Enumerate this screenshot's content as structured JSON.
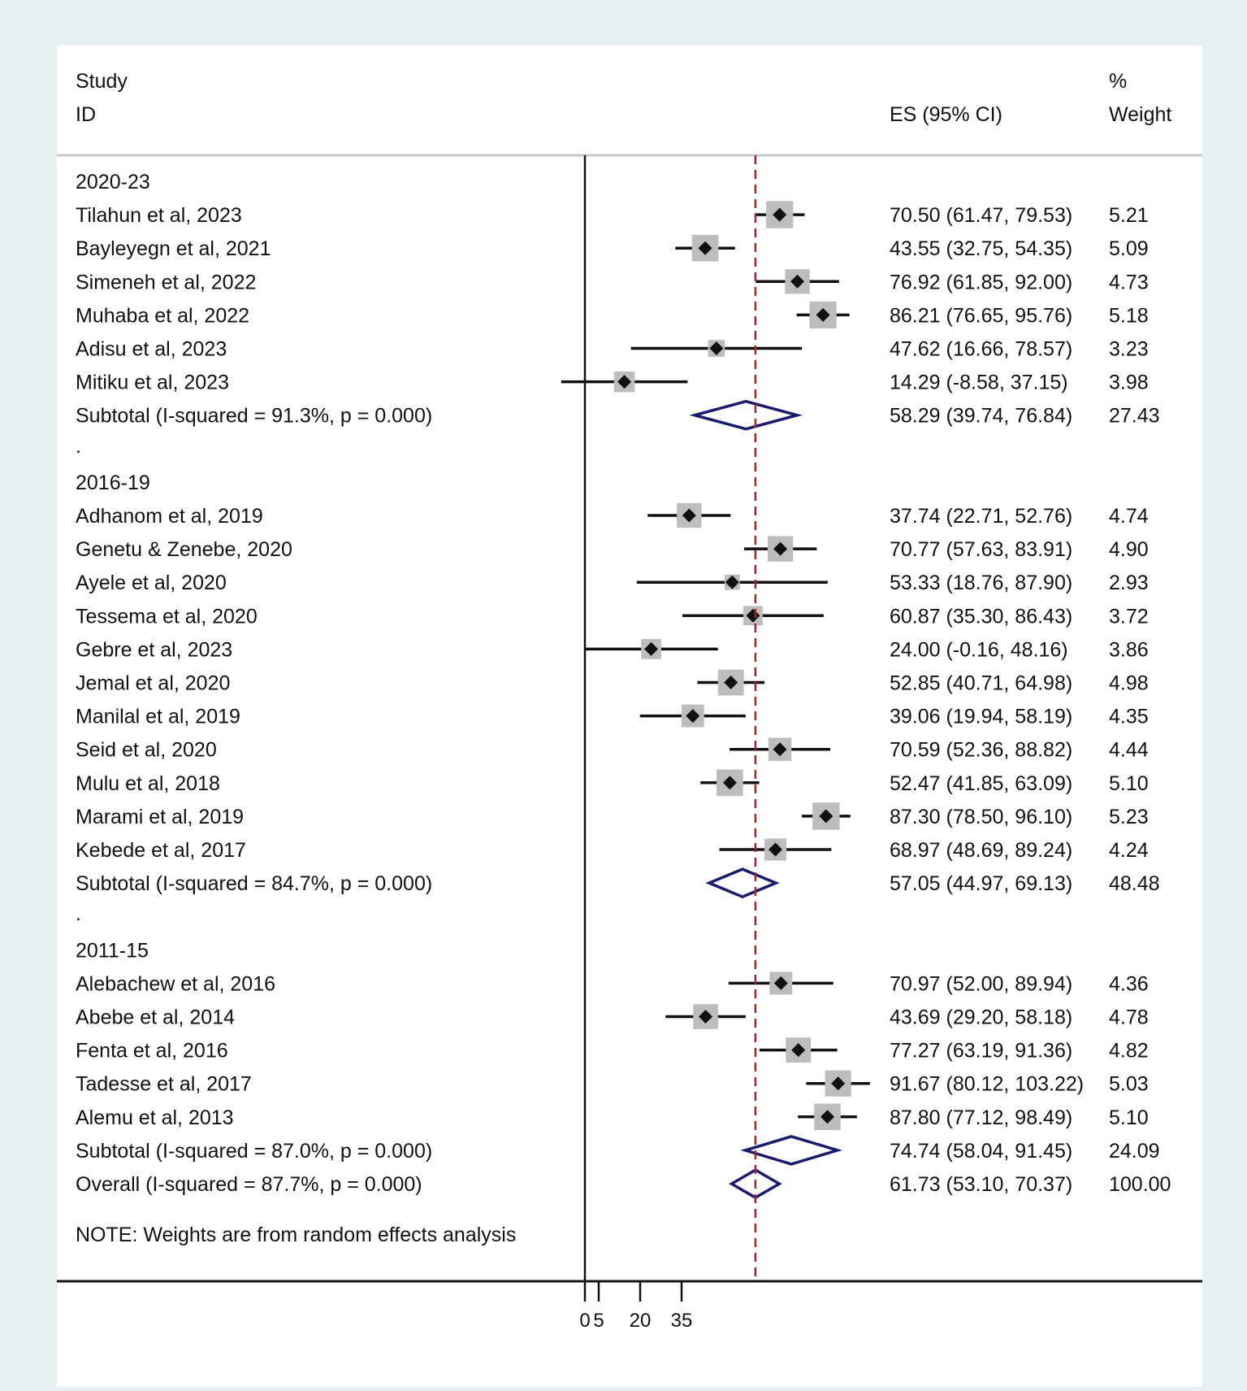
{
  "chart_data": {
    "type": "forest",
    "headers": {
      "study_line1": "Study",
      "study_line2": "ID",
      "es": "ES (95% CI)",
      "weight_line1": "%",
      "weight_line2": "Weight"
    },
    "groups": [
      {
        "label": "2020-23",
        "studies": [
          {
            "name": "Tilahun et al, 2023",
            "es": 70.5,
            "lo": 61.47,
            "hi": 79.53,
            "ci_text": "70.50 (61.47, 79.53)",
            "weight": "5.21"
          },
          {
            "name": "Bayleyegn et al, 2021",
            "es": 43.55,
            "lo": 32.75,
            "hi": 54.35,
            "ci_text": "43.55 (32.75, 54.35)",
            "weight": "5.09"
          },
          {
            "name": "Simeneh et al, 2022",
            "es": 76.92,
            "lo": 61.85,
            "hi": 92.0,
            "ci_text": "76.92 (61.85, 92.00)",
            "weight": "4.73"
          },
          {
            "name": "Muhaba et al, 2022",
            "es": 86.21,
            "lo": 76.65,
            "hi": 95.76,
            "ci_text": "86.21 (76.65, 95.76)",
            "weight": "5.18"
          },
          {
            "name": "Adisu et al, 2023",
            "es": 47.62,
            "lo": 16.66,
            "hi": 78.57,
            "ci_text": "47.62 (16.66, 78.57)",
            "weight": "3.23"
          },
          {
            "name": "Mitiku et al, 2023",
            "es": 14.29,
            "lo": -8.58,
            "hi": 37.15,
            "ci_text": "14.29 (-8.58, 37.15)",
            "weight": "3.98"
          }
        ],
        "subtotal": {
          "label": "Subtotal  (I-squared = 91.3%, p = 0.000)",
          "es": 58.29,
          "lo": 39.74,
          "hi": 76.84,
          "ci_text": "58.29 (39.74, 76.84)",
          "weight": "27.43"
        }
      },
      {
        "label": "2016-19",
        "studies": [
          {
            "name": "Adhanom et al, 2019",
            "es": 37.74,
            "lo": 22.71,
            "hi": 52.76,
            "ci_text": "37.74 (22.71, 52.76)",
            "weight": "4.74"
          },
          {
            "name": "Genetu & Zenebe, 2020",
            "es": 70.77,
            "lo": 57.63,
            "hi": 83.91,
            "ci_text": "70.77 (57.63, 83.91)",
            "weight": "4.90"
          },
          {
            "name": "Ayele et al, 2020",
            "es": 53.33,
            "lo": 18.76,
            "hi": 87.9,
            "ci_text": "53.33 (18.76, 87.90)",
            "weight": "2.93"
          },
          {
            "name": "Tessema et al, 2020",
            "es": 60.87,
            "lo": 35.3,
            "hi": 86.43,
            "ci_text": "60.87 (35.30, 86.43)",
            "weight": "3.72"
          },
          {
            "name": "Gebre et al, 2023",
            "es": 24.0,
            "lo": -0.16,
            "hi": 48.16,
            "ci_text": "24.00 (-0.16, 48.16)",
            "weight": "3.86"
          },
          {
            "name": "Jemal et al, 2020",
            "es": 52.85,
            "lo": 40.71,
            "hi": 64.98,
            "ci_text": "52.85 (40.71, 64.98)",
            "weight": "4.98"
          },
          {
            "name": "Manilal et al, 2019",
            "es": 39.06,
            "lo": 19.94,
            "hi": 58.19,
            "ci_text": "39.06 (19.94, 58.19)",
            "weight": "4.35"
          },
          {
            "name": "Seid et al, 2020",
            "es": 70.59,
            "lo": 52.36,
            "hi": 88.82,
            "ci_text": "70.59 (52.36, 88.82)",
            "weight": "4.44"
          },
          {
            "name": "Mulu et al, 2018",
            "es": 52.47,
            "lo": 41.85,
            "hi": 63.09,
            "ci_text": "52.47 (41.85, 63.09)",
            "weight": "5.10"
          },
          {
            "name": "Marami et al, 2019",
            "es": 87.3,
            "lo": 78.5,
            "hi": 96.1,
            "ci_text": "87.30 (78.50, 96.10)",
            "weight": "5.23"
          },
          {
            "name": "Kebede et al, 2017",
            "es": 68.97,
            "lo": 48.69,
            "hi": 89.24,
            "ci_text": "68.97 (48.69, 89.24)",
            "weight": "4.24"
          }
        ],
        "subtotal": {
          "label": "Subtotal  (I-squared = 84.7%, p = 0.000)",
          "es": 57.05,
          "lo": 44.97,
          "hi": 69.13,
          "ci_text": "57.05 (44.97, 69.13)",
          "weight": "48.48"
        }
      },
      {
        "label": "2011-15",
        "studies": [
          {
            "name": "Alebachew et al, 2016",
            "es": 70.97,
            "lo": 52.0,
            "hi": 89.94,
            "ci_text": "70.97 (52.00, 89.94)",
            "weight": "4.36"
          },
          {
            "name": "Abebe et al, 2014",
            "es": 43.69,
            "lo": 29.2,
            "hi": 58.18,
            "ci_text": "43.69 (29.20, 58.18)",
            "weight": "4.78"
          },
          {
            "name": "Fenta et al, 2016",
            "es": 77.27,
            "lo": 63.19,
            "hi": 91.36,
            "ci_text": "77.27 (63.19, 91.36)",
            "weight": "4.82"
          },
          {
            "name": "Tadesse et al, 2017",
            "es": 91.67,
            "lo": 80.12,
            "hi": 103.22,
            "ci_text": "91.67 (80.12, 103.22)",
            "weight": "5.03"
          },
          {
            "name": "Alemu et al, 2013",
            "es": 87.8,
            "lo": 77.12,
            "hi": 98.49,
            "ci_text": "87.80 (77.12, 98.49)",
            "weight": "5.10"
          }
        ],
        "subtotal": {
          "label": "Subtotal  (I-squared = 87.0%, p = 0.000)",
          "es": 74.74,
          "lo": 58.04,
          "hi": 91.45,
          "ci_text": "74.74 (58.04, 91.45)",
          "weight": "24.09"
        }
      }
    ],
    "separator": ".",
    "overall": {
      "label": "Overall  (I-squared = 87.7%, p = 0.000)",
      "es": 61.73,
      "lo": 53.1,
      "hi": 70.37,
      "ci_text": "61.73 (53.10, 70.37)",
      "weight": "100.00"
    },
    "note": "NOTE: Weights are from random effects analysis",
    "x_ticks": [
      {
        "value": 0,
        "label": "0"
      },
      {
        "value": 5,
        "label": "5"
      },
      {
        "value": 20,
        "label": "20"
      },
      {
        "value": 35,
        "label": "35"
      }
    ],
    "null_line": 0,
    "colors": {
      "background": "#e9f0f3",
      "panel": "#ffffff",
      "marker_box": "#bdbdbd",
      "diamond": "#1a1a6e",
      "overall_line": "#9b2c2c"
    }
  }
}
